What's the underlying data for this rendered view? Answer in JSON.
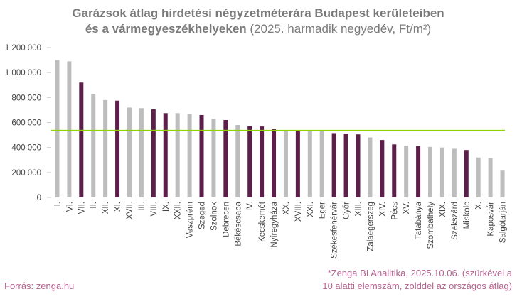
{
  "chart_data": {
    "type": "bar",
    "title_lines": [
      [
        {
          "text": "Garázsok átlag hirdetési négyzetméterára Budapest kerületeiben",
          "bold": true
        }
      ],
      [
        {
          "text": "és a vármegyeszékhelyeken",
          "bold": true
        },
        {
          "text": " (2025. harmadik negyedév, Ft/m²)",
          "bold": false
        }
      ]
    ],
    "categories": [
      "I.",
      "VI.",
      "VII.",
      "II.",
      "XII.",
      "XI.",
      "XVII.",
      "III.",
      "VIII.",
      "IX.",
      "XXII.",
      "Veszprém",
      "Szeged",
      "Szolnok",
      "Debrecen",
      "Békéscsaba",
      "IV.",
      "Kecskemét",
      "Nyíregyháza",
      "XX.",
      "XVIII.",
      "XXI.",
      "Eger",
      "Székesfehérvár",
      "Győr",
      "XIII.",
      "Zalaegerszeg",
      "XIV.",
      "Pécs",
      "XV.",
      "Tatabánya",
      "Szombathely",
      "XIX.",
      "Szekszárd",
      "Miskolc",
      "X.",
      "Kaposvár",
      "Salgótarján"
    ],
    "values": [
      1100000,
      1090000,
      920000,
      830000,
      780000,
      775000,
      720000,
      715000,
      705000,
      675000,
      675000,
      670000,
      660000,
      630000,
      620000,
      580000,
      570000,
      568000,
      550000,
      540000,
      530000,
      530000,
      530000,
      515000,
      510000,
      505000,
      480000,
      460000,
      425000,
      415000,
      410000,
      405000,
      400000,
      390000,
      380000,
      320000,
      315000,
      215000
    ],
    "colors": [
      "#bdbdbd",
      "#bdbdbd",
      "#5c1f4a",
      "#bdbdbd",
      "#bdbdbd",
      "#5c1f4a",
      "#bdbdbd",
      "#bdbdbd",
      "#5c1f4a",
      "#5c1f4a",
      "#bdbdbd",
      "#bdbdbd",
      "#5c1f4a",
      "#bdbdbd",
      "#5c1f4a",
      "#bdbdbd",
      "#5c1f4a",
      "#5c1f4a",
      "#5c1f4a",
      "#bdbdbd",
      "#5c1f4a",
      "#bdbdbd",
      "#bdbdbd",
      "#5c1f4a",
      "#5c1f4a",
      "#5c1f4a",
      "#bdbdbd",
      "#5c1f4a",
      "#5c1f4a",
      "#bdbdbd",
      "#5c1f4a",
      "#bdbdbd",
      "#bdbdbd",
      "#bdbdbd",
      "#5c1f4a",
      "#bdbdbd",
      "#bdbdbd",
      "#bdbdbd"
    ],
    "average": 535000,
    "average_color": "#8fd400",
    "ylim": [
      0,
      1200000
    ],
    "yticks": [
      0,
      {
        "value": 200000,
        "label": "200 000"
      },
      {
        "value": 400000,
        "label": "400 000"
      },
      {
        "value": 600000,
        "label": "600 000"
      },
      {
        "value": 800000,
        "label": "800 000"
      },
      {
        "value": 1000000,
        "label": "1 000 000"
      },
      {
        "value": 1200000,
        "label": "1 200 000"
      }
    ],
    "source": "Forrás: zenga.hu",
    "note_lines": [
      "*Zenga BI Analitika, 2025.10.06. (szürkével a",
      "10 alatti elemszám, zölddel az országos átlag)"
    ]
  }
}
